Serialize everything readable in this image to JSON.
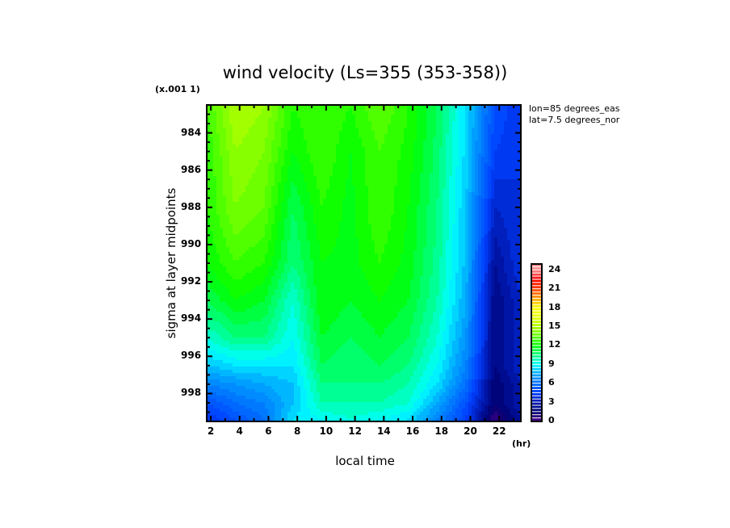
{
  "chart_data": {
    "type": "heatmap",
    "title": "wind velocity (Ls=355 (353-358))",
    "xlabel": "local time",
    "xunit": "(hr)",
    "ylabel": "sigma at layer midpoints",
    "yscale_note": "(x.001 1)",
    "annotations": [
      "lon=85 degrees_eas",
      "lat=7.5 degrees_nor"
    ],
    "xlim": [
      1.72,
      23.5
    ],
    "ylim": [
      999.5,
      982.5
    ],
    "y_inverted": true,
    "xticks": [
      2,
      4,
      6,
      8,
      10,
      12,
      14,
      16,
      18,
      20,
      22
    ],
    "yticks": [
      984,
      986,
      988,
      990,
      992,
      994,
      996,
      998
    ],
    "colorbar": {
      "ticks": [
        24,
        21,
        18,
        15,
        12,
        9,
        6,
        3,
        0
      ],
      "range": [
        0,
        25
      ],
      "step": 0.5
    },
    "x": [
      1.72,
      3.7,
      5.7,
      7.7,
      9.7,
      11.7,
      13.7,
      15.7,
      17.7,
      19.7,
      21.7,
      23.5
    ],
    "y": [
      982.6,
      985,
      988,
      991,
      993,
      995,
      996.5,
      997.5,
      998.5,
      999.4
    ],
    "z_by_x": [
      [
        13,
        12.5,
        12.5,
        12,
        11,
        9.5,
        8,
        6.5,
        5,
        4
      ],
      [
        15,
        14.5,
        14,
        13,
        12,
        10.5,
        8.5,
        7,
        6,
        5
      ],
      [
        14.5,
        14,
        13.5,
        12.5,
        11.5,
        10.5,
        8.5,
        7.5,
        6.5,
        6
      ],
      [
        12.5,
        12,
        11,
        10.5,
        9.5,
        9,
        8.5,
        8,
        8,
        8.5
      ],
      [
        13,
        13,
        12.5,
        12,
        12,
        11.5,
        11,
        10.5,
        10,
        9
      ],
      [
        12.5,
        12,
        11.8,
        11.8,
        11.5,
        11,
        10.5,
        10.5,
        10,
        9.5
      ],
      [
        13.5,
        13,
        13,
        12.5,
        12,
        11.5,
        11,
        10.5,
        10,
        9
      ],
      [
        12.5,
        12.3,
        12,
        11.8,
        11.5,
        11,
        10.5,
        10,
        9.5,
        8.5
      ],
      [
        11,
        10.8,
        10.5,
        10.3,
        10,
        9.5,
        9,
        8.5,
        7.5,
        6.5
      ],
      [
        8.5,
        8.3,
        8,
        7.8,
        7.5,
        7,
        6.5,
        6,
        5,
        4.5
      ],
      [
        5,
        4.5,
        3.5,
        2.5,
        2,
        2,
        2,
        1.5,
        1.5,
        0.5
      ],
      [
        4,
        4,
        4,
        4,
        3.5,
        3.5,
        3.5,
        3,
        3,
        2.5
      ]
    ],
    "colormap": [
      [
        0,
        "#500090"
      ],
      [
        1.5,
        "#000070"
      ],
      [
        3,
        "#0018b0"
      ],
      [
        4.5,
        "#0040ff"
      ],
      [
        6,
        "#0070ff"
      ],
      [
        7.5,
        "#00a8ff"
      ],
      [
        9,
        "#00ffff"
      ],
      [
        10.5,
        "#00ff80"
      ],
      [
        12,
        "#00ff00"
      ],
      [
        13.5,
        "#60ff00"
      ],
      [
        15,
        "#b0ff00"
      ],
      [
        16.5,
        "#e8ff00"
      ],
      [
        18,
        "#ffff00"
      ],
      [
        19.5,
        "#ffa000"
      ],
      [
        21,
        "#ff4000"
      ],
      [
        22.5,
        "#ff0000"
      ],
      [
        24,
        "#ff9090"
      ]
    ]
  }
}
